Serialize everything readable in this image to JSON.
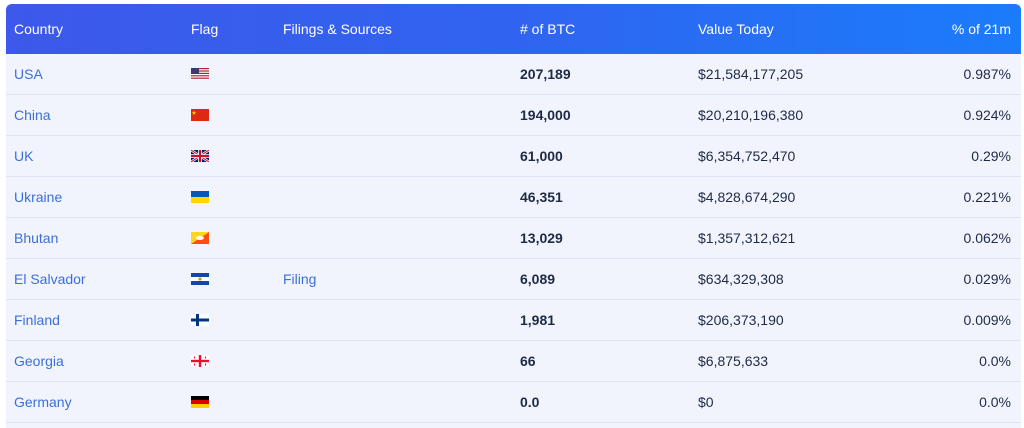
{
  "table": {
    "headers": {
      "country": "Country",
      "flag": "Flag",
      "filings": "Filings & Sources",
      "btc": "# of BTC",
      "value": "Value Today",
      "pct": "% of 21m"
    },
    "rows": [
      {
        "country": "USA",
        "flag_icon": "usa-flag-icon",
        "filing": "",
        "btc": "207,189",
        "value": "$21,584,177,205",
        "pct": "0.987%"
      },
      {
        "country": "China",
        "flag_icon": "china-flag-icon",
        "filing": "",
        "btc": "194,000",
        "value": "$20,210,196,380",
        "pct": "0.924%"
      },
      {
        "country": "UK",
        "flag_icon": "uk-flag-icon",
        "filing": "",
        "btc": "61,000",
        "value": "$6,354,752,470",
        "pct": "0.29%"
      },
      {
        "country": "Ukraine",
        "flag_icon": "ukraine-flag-icon",
        "filing": "",
        "btc": "46,351",
        "value": "$4,828,674,290",
        "pct": "0.221%"
      },
      {
        "country": "Bhutan",
        "flag_icon": "bhutan-flag-icon",
        "filing": "",
        "btc": "13,029",
        "value": "$1,357,312,621",
        "pct": "0.062%"
      },
      {
        "country": "El Salvador",
        "flag_icon": "el-salvador-flag-icon",
        "filing": "Filing",
        "btc": "6,089",
        "value": "$634,329,308",
        "pct": "0.029%"
      },
      {
        "country": "Finland",
        "flag_icon": "finland-flag-icon",
        "filing": "",
        "btc": "1,981",
        "value": "$206,373,190",
        "pct": "0.009%"
      },
      {
        "country": "Georgia",
        "flag_icon": "georgia-flag-icon",
        "filing": "",
        "btc": "66",
        "value": "$6,875,633",
        "pct": "0.0%"
      },
      {
        "country": "Germany",
        "flag_icon": "germany-flag-icon",
        "filing": "",
        "btc": "0.0",
        "value": "$0",
        "pct": "0.0%"
      }
    ]
  },
  "colors": {
    "header_gradient_start": "#3d58ea",
    "header_gradient_end": "#1b7cfb",
    "link": "#3b6fd8",
    "row_background": "#f1f4fd"
  }
}
